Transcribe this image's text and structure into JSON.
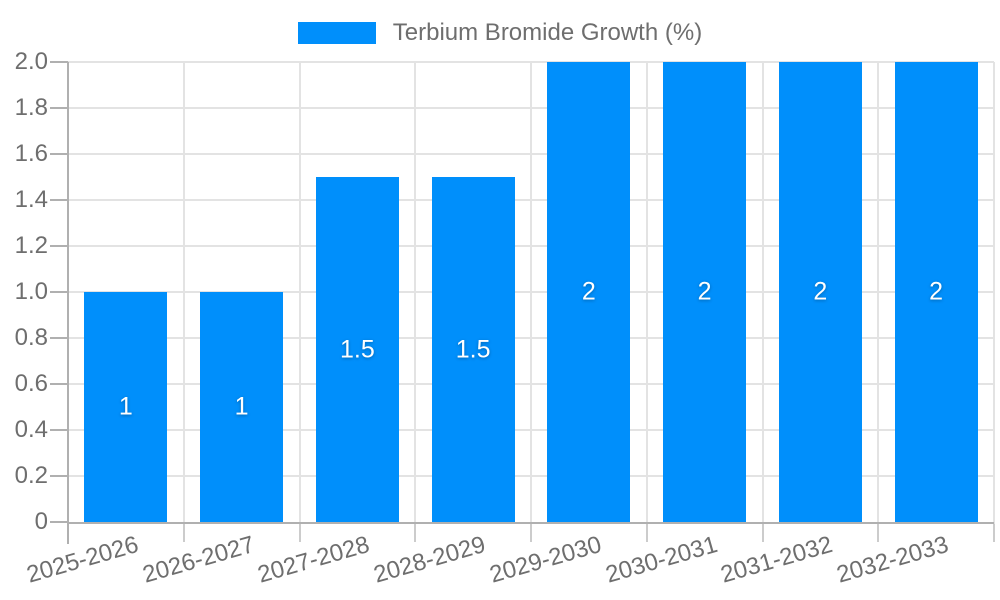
{
  "legend": {
    "label": "Terbium Bromide Growth (%)"
  },
  "colors": {
    "bar": "#008FFB",
    "grid": "#e3e3e3",
    "axis": "#b0b0b0",
    "tick": "#cccccc",
    "text": "#6e6e6e",
    "bar_label_text": "#ffffff",
    "background": "#ffffff"
  },
  "chart_data": {
    "type": "bar",
    "series": [
      {
        "name": "Terbium Bromide Growth (%)",
        "values": [
          1,
          1,
          1.5,
          1.5,
          2,
          2,
          2,
          2
        ],
        "color": "#008FFB"
      }
    ],
    "categories": [
      "2025-2026",
      "2026-2027",
      "2027-2028",
      "2028-2029",
      "2029-2030",
      "2030-2031",
      "2031-2032",
      "2032-2033"
    ],
    "bar_value_labels": [
      "1",
      "1",
      "1.5",
      "1.5",
      "2",
      "2",
      "2",
      "2"
    ],
    "ylim": [
      0,
      2
    ],
    "ytick_step": 0.2,
    "ytick_labels": [
      "0",
      "0.2",
      "0.4",
      "0.6",
      "0.8",
      "1.0",
      "1.2",
      "1.4",
      "1.6",
      "1.8",
      "2.0"
    ],
    "grid": true,
    "legend_position": "top-center",
    "x_label_rotation_deg": -16
  }
}
